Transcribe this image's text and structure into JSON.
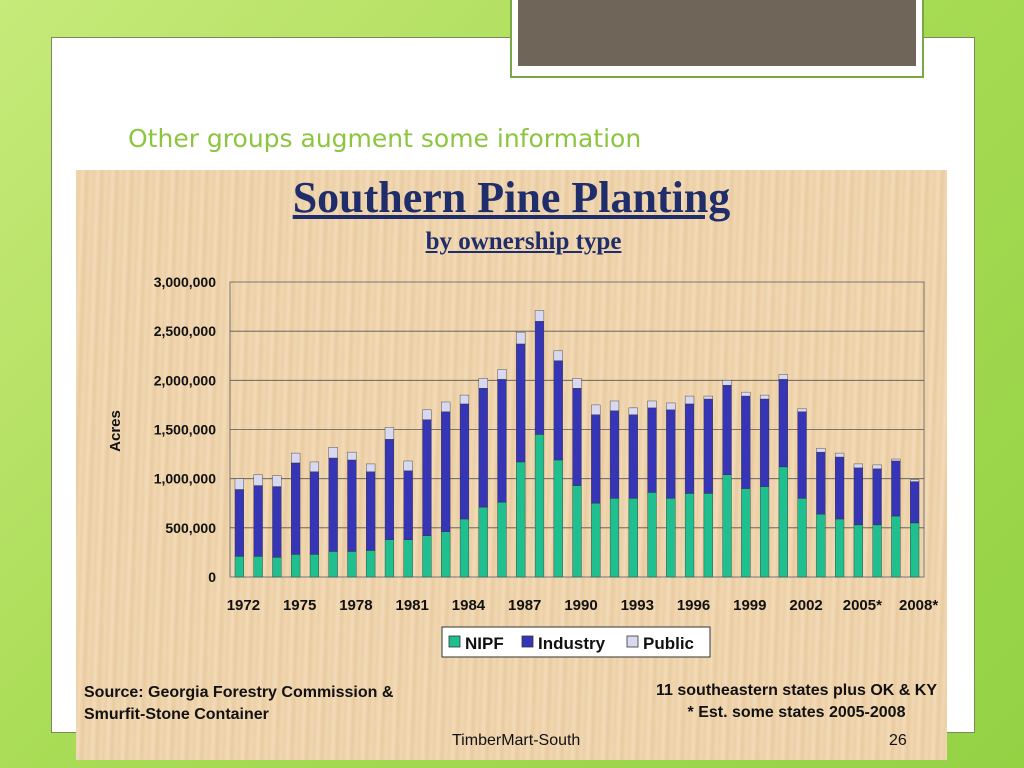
{
  "slide": {
    "subtitle": "Other groups augment some information",
    "footer_source": "TimberMart-South",
    "page_number": "26"
  },
  "notes": {
    "source_line1": "Source: Georgia Forestry Commission &",
    "source_line2": "Smurfit-Stone Container",
    "coverage_line1": "11 southeastern states plus OK & KY",
    "coverage_line2": "* Est. some states 2005-2008"
  },
  "colors": {
    "nipf": "#1fbf8f",
    "industry": "#3535b5",
    "public": "#d8d8f0"
  },
  "chart_data": {
    "type": "bar",
    "stacked": true,
    "title": "Southern Pine Planting",
    "subtitle": "by ownership type",
    "xlabel": "",
    "ylabel": "Acres",
    "ylim": [
      0,
      3000000
    ],
    "yticks": [
      "0",
      "500,000",
      "1,000,000",
      "1,500,000",
      "2,000,000",
      "2,500,000",
      "3,000,000"
    ],
    "xtick_labels": [
      "1972",
      "1975",
      "1978",
      "1981",
      "1984",
      "1987",
      "1990",
      "1993",
      "1996",
      "1999",
      "2002",
      "2005*",
      "2008*"
    ],
    "categories": [
      "1972",
      "1973",
      "1974",
      "1975",
      "1976",
      "1977",
      "1978",
      "1979",
      "1980",
      "1981",
      "1982",
      "1983",
      "1984",
      "1985",
      "1986",
      "1987",
      "1988",
      "1989",
      "1990",
      "1991",
      "1992",
      "1993",
      "1994",
      "1995",
      "1996",
      "1997",
      "1998",
      "1999",
      "2000",
      "2001",
      "2002",
      "2003",
      "2004",
      "2005*",
      "2006*",
      "2007*",
      "2008*"
    ],
    "legend_position": "bottom",
    "grid": true,
    "series": [
      {
        "name": "NIPF",
        "values": [
          210000,
          210000,
          200000,
          230000,
          230000,
          260000,
          260000,
          270000,
          380000,
          380000,
          420000,
          460000,
          590000,
          710000,
          760000,
          1170000,
          1450000,
          1190000,
          930000,
          750000,
          800000,
          800000,
          860000,
          800000,
          850000,
          850000,
          1040000,
          900000,
          920000,
          1120000,
          800000,
          640000,
          590000,
          530000,
          530000,
          620000,
          550000
        ]
      },
      {
        "name": "Industry",
        "values": [
          680000,
          720000,
          720000,
          930000,
          840000,
          950000,
          930000,
          800000,
          1020000,
          700000,
          1180000,
          1220000,
          1170000,
          1210000,
          1250000,
          1200000,
          1150000,
          1010000,
          990000,
          900000,
          890000,
          850000,
          860000,
          900000,
          910000,
          960000,
          910000,
          940000,
          890000,
          890000,
          880000,
          630000,
          630000,
          580000,
          570000,
          560000,
          420000
        ]
      },
      {
        "name": "Public",
        "values": [
          110000,
          110000,
          110000,
          100000,
          100000,
          110000,
          80000,
          80000,
          120000,
          100000,
          100000,
          100000,
          90000,
          100000,
          100000,
          120000,
          110000,
          100000,
          100000,
          100000,
          100000,
          70000,
          70000,
          70000,
          80000,
          30000,
          50000,
          40000,
          40000,
          50000,
          30000,
          40000,
          40000,
          40000,
          40000,
          20000,
          20000
        ]
      }
    ]
  }
}
